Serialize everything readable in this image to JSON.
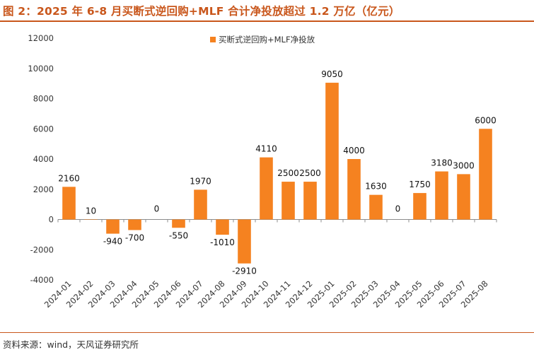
{
  "title": "图 2：2025 年 6-8 月买断式逆回购+MLF 合计净投放超过 1.2 万亿（亿元）",
  "source": "资料来源：wind，天风证券研究所",
  "colors": {
    "bar": "#f58220",
    "accent": "#c9571c"
  },
  "chart_data": {
    "type": "bar",
    "categories": [
      "2024-01",
      "2024-02",
      "2024-03",
      "2024-04",
      "2024-05",
      "2024-06",
      "2024-07",
      "2024-08",
      "2024-09",
      "2024-10",
      "2024-11",
      "2024-12",
      "2025-01",
      "2025-02",
      "2025-03",
      "2025-04",
      "2025-05",
      "2025-06",
      "2025-07",
      "2025-08"
    ],
    "series": [
      {
        "name": "买断式逆回购+MLF净投放",
        "values": [
          2160,
          10,
          -940,
          -700,
          0,
          -550,
          1970,
          -1010,
          -2910,
          4110,
          2500,
          2500,
          9050,
          4000,
          1630,
          0,
          1750,
          3180,
          3000,
          6000
        ]
      }
    ],
    "data_labels": [
      "2160",
      "10",
      "-940",
      "-700",
      "0",
      "-550",
      "1970",
      "-1010",
      "-2910",
      "4110",
      "2500",
      "2500",
      "9050",
      "4000",
      "1630",
      "0",
      "1750",
      "3180",
      "3000",
      "6000"
    ],
    "ylim": [
      -4000,
      12000
    ],
    "yticks": [
      -4000,
      -2000,
      0,
      2000,
      4000,
      6000,
      8000,
      10000,
      12000
    ],
    "ytick_labels": [
      "-4000",
      "-2000",
      "0",
      "2000",
      "4000",
      "6000",
      "8000",
      "10000",
      "12000"
    ],
    "legend_position": "top-center",
    "grid": false
  }
}
